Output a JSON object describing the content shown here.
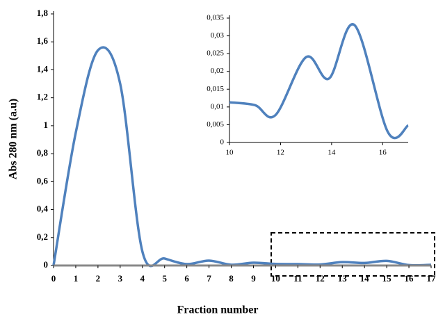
{
  "chart_data": [
    {
      "type": "line",
      "xlabel": "Fraction number",
      "ylabel": "Abs 280 nm (a.u)",
      "x": [
        0,
        1,
        2,
        3,
        4,
        5,
        6,
        7,
        8,
        9,
        10,
        11,
        12,
        13,
        14,
        15,
        16,
        17
      ],
      "series": [
        {
          "color": "#4f81bd",
          "values": [
            0,
            0.95,
            1.54,
            1.3,
            0.1,
            0.05,
            0.01,
            0.035,
            0.005,
            0.02,
            0.011,
            0.01,
            0.007,
            0.024,
            0.018,
            0.033,
            0.003,
            0.005
          ]
        }
      ],
      "xlim": [
        0,
        17
      ],
      "xticks": [
        0,
        1,
        2,
        3,
        4,
        5,
        6,
        7,
        8,
        9,
        10,
        11,
        12,
        13,
        14,
        15,
        16,
        17
      ],
      "ylim": [
        0,
        1.8
      ],
      "yticks": [
        0,
        {
          "value": 0.2,
          "label": "0,2"
        },
        {
          "value": 0.4,
          "label": "0,4"
        },
        {
          "value": 0.6,
          "label": "0,6"
        },
        {
          "value": 0.8,
          "label": "0,8"
        },
        1,
        {
          "value": 1.2,
          "label": "1,2"
        },
        {
          "value": 1.4,
          "label": "1,4"
        },
        {
          "value": 1.6,
          "label": "1,6"
        },
        {
          "value": 1.8,
          "label": "1,8"
        }
      ]
    },
    {
      "type": "line",
      "x": [
        10,
        11,
        11.8,
        13,
        13.9,
        14.9,
        16.2,
        17
      ],
      "series": [
        {
          "color": "#4f81bd",
          "values": [
            0.0113,
            0.0105,
            0.0077,
            0.024,
            0.018,
            0.033,
            0.003,
            0.0048
          ]
        }
      ],
      "xlim": [
        10,
        17
      ],
      "xticks": [
        10,
        12,
        14,
        16
      ],
      "ylim": [
        0,
        0.035
      ],
      "yticks": [
        0,
        {
          "value": 0.005,
          "label": "0,005"
        },
        {
          "value": 0.01,
          "label": "0,01"
        },
        {
          "value": 0.015,
          "label": "0,015"
        },
        {
          "value": 0.02,
          "label": "0,02"
        },
        {
          "value": 0.025,
          "label": "0,025"
        },
        {
          "value": 0.03,
          "label": "0,03"
        },
        {
          "value": 0.035,
          "label": "0,035"
        }
      ]
    }
  ]
}
